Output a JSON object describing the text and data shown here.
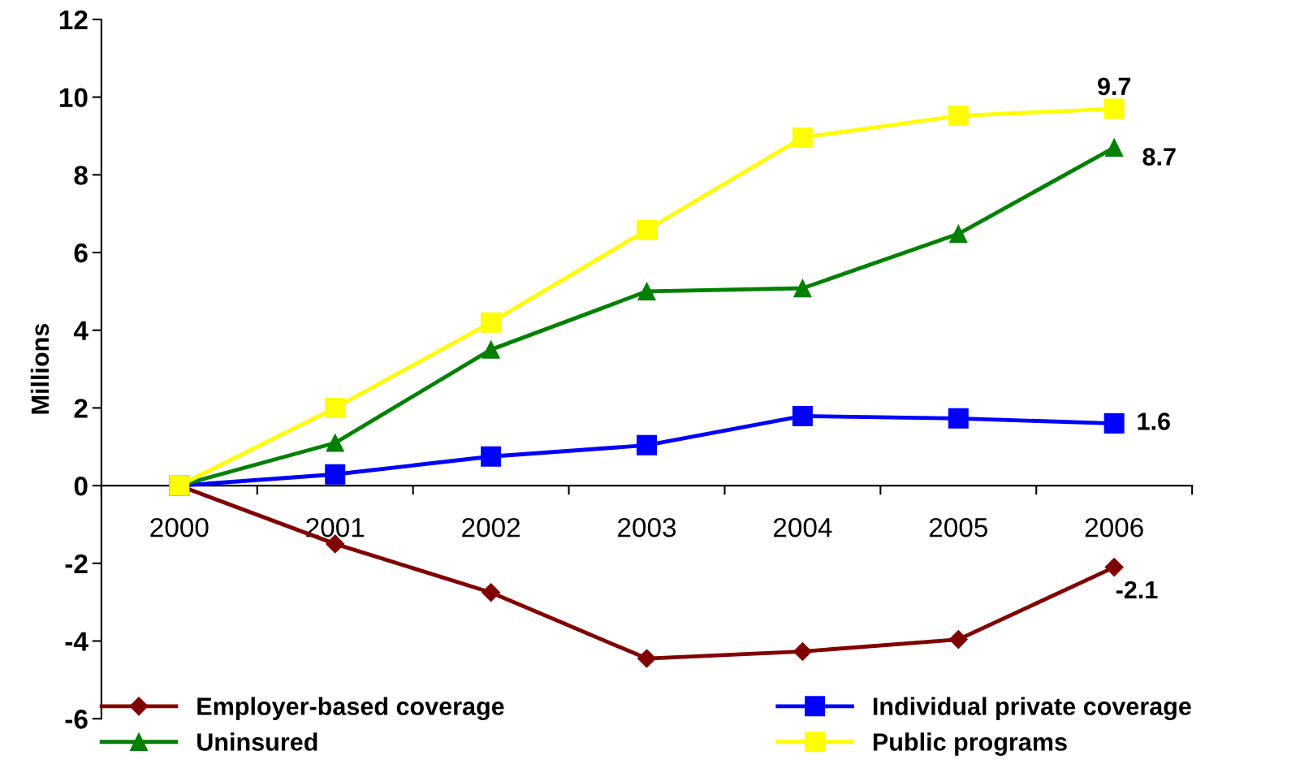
{
  "chart_data": {
    "type": "line",
    "ylabel": "Millions",
    "categories": [
      "2000",
      "2001",
      "2002",
      "2003",
      "2004",
      "2005",
      "2006"
    ],
    "series": [
      {
        "name": "Employer-based coverage",
        "color": "#800000",
        "marker": "diamond",
        "values": [
          0,
          -1.5,
          -2.75,
          -4.45,
          -4.27,
          -3.96,
          -2.1
        ],
        "value_labels": [
          null,
          null,
          null,
          null,
          null,
          null,
          "-2.1"
        ]
      },
      {
        "name": "Individual private coverage",
        "color": "#0000ff",
        "marker": "square",
        "values": [
          0,
          0.29,
          0.75,
          1.04,
          1.79,
          1.73,
          1.6
        ],
        "value_labels": [
          null,
          null,
          null,
          null,
          null,
          null,
          "1.6"
        ]
      },
      {
        "name": "Uninsured",
        "color": "#008000",
        "marker": "triangle",
        "values": [
          0,
          1.1,
          3.5,
          5.0,
          5.08,
          6.48,
          8.7
        ],
        "value_labels": [
          null,
          null,
          null,
          null,
          null,
          null,
          "8.7"
        ]
      },
      {
        "name": "Public programs",
        "color": "#ffff00",
        "marker": "square",
        "values": [
          0,
          2.0,
          4.2,
          6.58,
          8.96,
          9.52,
          9.7
        ],
        "value_labels": [
          null,
          null,
          null,
          null,
          null,
          null,
          "9.7"
        ]
      }
    ],
    "ylim": [
      -6,
      12
    ],
    "yticks": [
      -6,
      -4,
      -2,
      0,
      2,
      4,
      6,
      8,
      10,
      12
    ],
    "grid": false,
    "legend": "bottom",
    "line_style": "solid"
  }
}
